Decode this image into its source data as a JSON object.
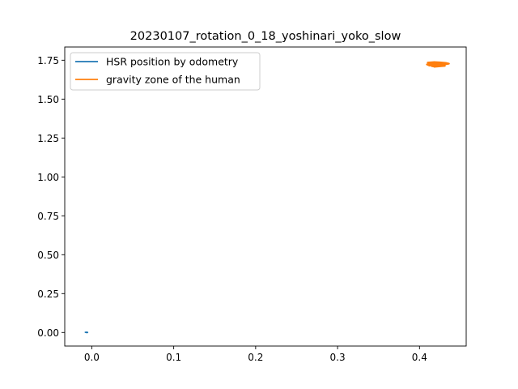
{
  "chart_data": {
    "type": "line",
    "title": "20230107_rotation_0_18_yoshinari_yoko_slow",
    "xlabel": "",
    "ylabel": "",
    "xlim": [
      -0.033,
      0.057
    ],
    "ylim": [
      -0.087,
      1.835
    ],
    "xticks": [
      0.0,
      0.1,
      0.2,
      0.3,
      0.4
    ],
    "xtick_labels": [
      "0.0",
      "0.1",
      "0.2",
      "0.3",
      "0.4"
    ],
    "yticks": [
      0.0,
      0.25,
      0.5,
      0.75,
      1.0,
      1.25,
      1.5,
      1.75
    ],
    "ytick_labels": [
      "0.00",
      "0.25",
      "0.50",
      "0.75",
      "1.00",
      "1.25",
      "1.50",
      "1.75"
    ],
    "grid": false,
    "legend_position": "upper left",
    "series": [
      {
        "name": "HSR position by odometry",
        "color": "#1f77b4",
        "x": [
          -0.0075,
          -0.006,
          -0.005,
          -0.0055,
          -0.007,
          -0.008,
          -0.0065,
          -0.005
        ],
        "y": [
          0.001,
          0.002,
          0.0005,
          -0.001,
          0.0,
          0.0015,
          0.002,
          0.0008
        ]
      },
      {
        "name": "gravity zone of the human",
        "color": "#ff7f0e",
        "x": [
          0.41,
          0.418,
          0.425,
          0.432,
          0.436,
          0.43,
          0.424,
          0.416,
          0.411,
          0.414,
          0.421,
          0.428,
          0.434,
          0.427,
          0.419,
          0.412,
          0.409,
          0.417,
          0.426,
          0.433,
          0.429,
          0.422,
          0.415,
          0.42,
          0.431,
          0.425,
          0.418
        ],
        "y": [
          1.735,
          1.738,
          1.736,
          1.733,
          1.728,
          1.722,
          1.718,
          1.715,
          1.72,
          1.727,
          1.731,
          1.734,
          1.73,
          1.724,
          1.719,
          1.716,
          1.723,
          1.729,
          1.732,
          1.726,
          1.721,
          1.717,
          1.712,
          1.709,
          1.714,
          1.711,
          1.708
        ]
      }
    ]
  }
}
